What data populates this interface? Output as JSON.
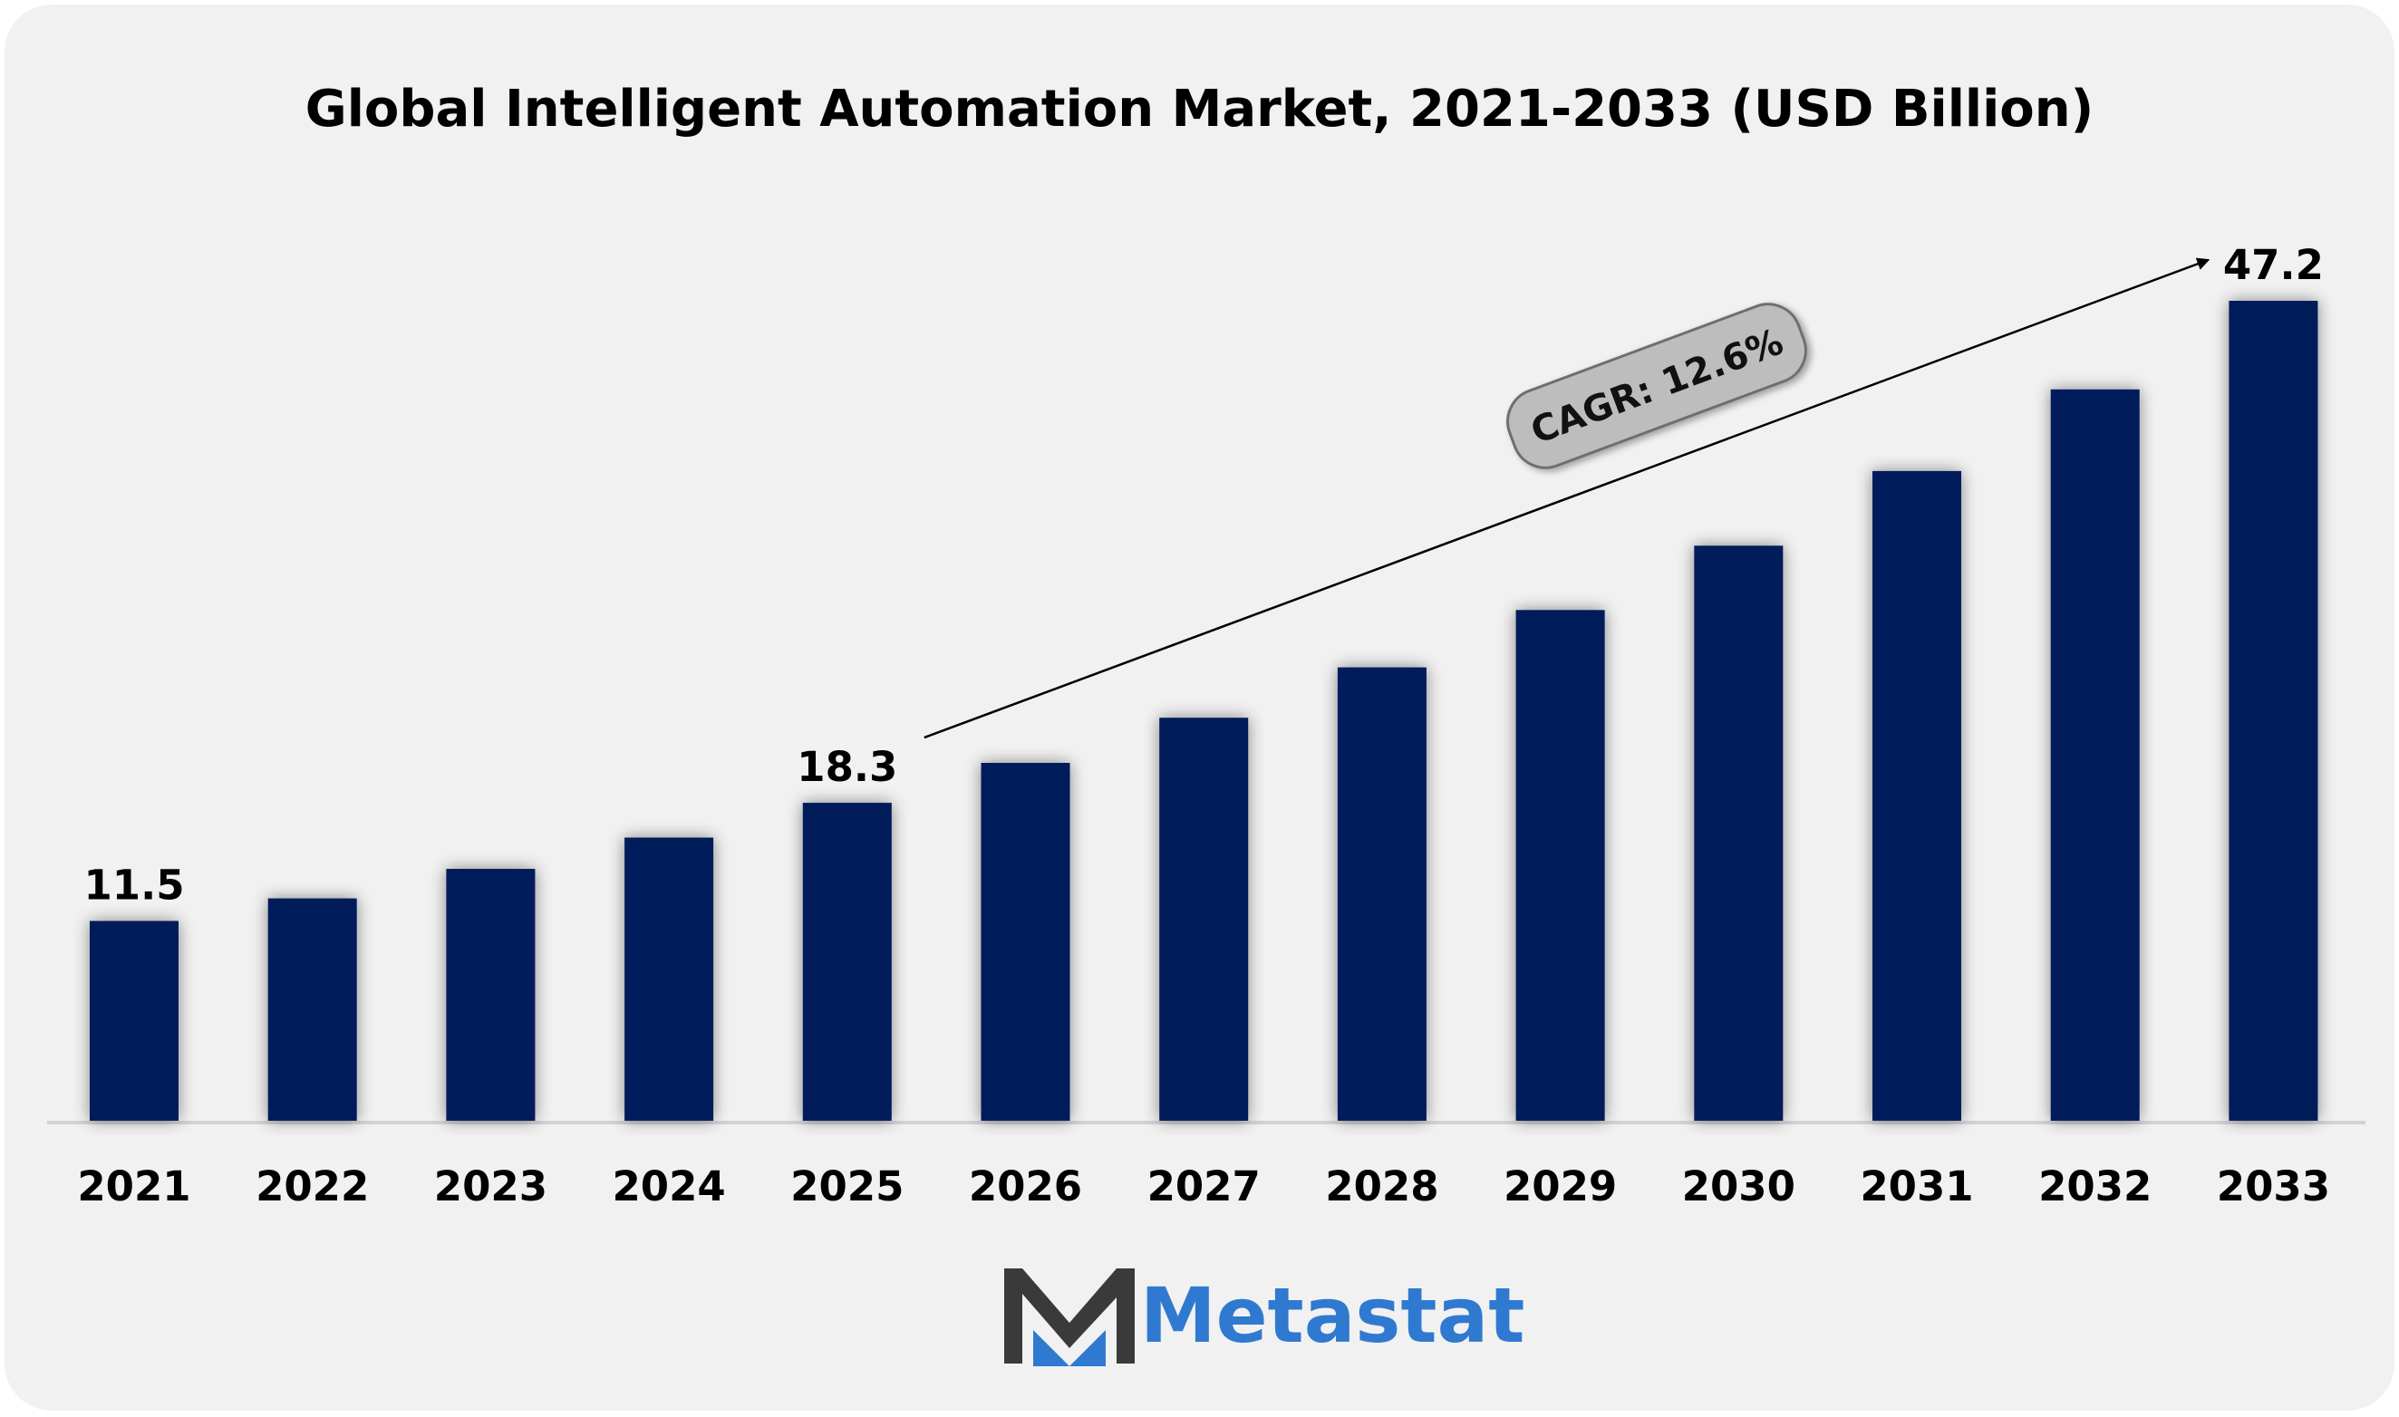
{
  "colors": {
    "background": "#f1f1f1",
    "bar": "#031d5a",
    "text": "#000000",
    "cagr_box": "#bdbdbd",
    "logo_blue": "#2f7ad0",
    "logo_dark": "#3a3a3a"
  },
  "chart_data": {
    "type": "bar",
    "title": "Global Intelligent Automation Market, 2021-2033 (USD Billion)",
    "xlabel": "",
    "ylabel": "",
    "categories": [
      "2021",
      "2022",
      "2023",
      "2024",
      "2025",
      "2026",
      "2027",
      "2028",
      "2029",
      "2030",
      "2031",
      "2032",
      "2033"
    ],
    "values": [
      11.5,
      12.8,
      14.5,
      16.3,
      18.3,
      20.6,
      23.2,
      26.1,
      29.4,
      33.1,
      37.4,
      42.1,
      47.2
    ],
    "data_labels": [
      {
        "index": 0,
        "text": "11.5"
      },
      {
        "index": 4,
        "text": "18.3"
      },
      {
        "index": 12,
        "text": "47.2"
      }
    ],
    "annotation": {
      "text": "CAGR: 12.6%",
      "from_index": 4,
      "to_index": 12
    },
    "ylim": [
      0,
      47.2
    ],
    "grid": false,
    "legend": "none"
  },
  "logo": {
    "text": "Metastat",
    "icon": "metastat-m-logo-icon"
  }
}
